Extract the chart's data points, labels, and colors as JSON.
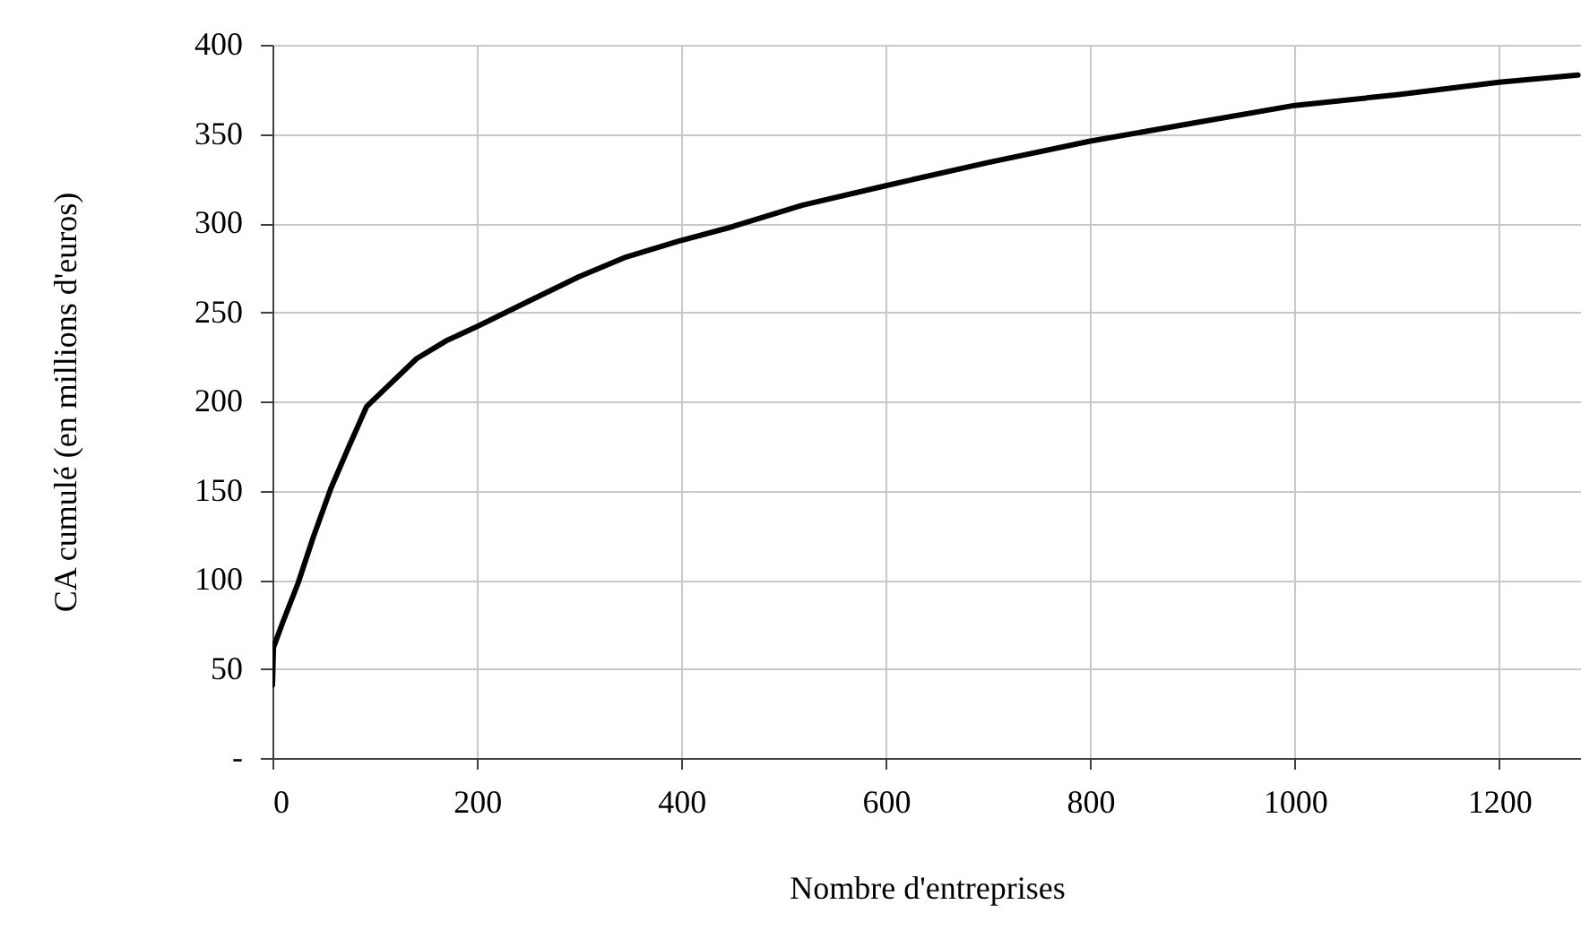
{
  "chart_data": {
    "type": "line",
    "xlabel": "Nombre d'entreprises",
    "ylabel": "CA cumulé  (en millions d'euros)",
    "x": [
      0,
      1,
      10,
      25,
      40,
      57,
      75,
      92,
      110,
      141,
      170,
      200,
      250,
      300,
      346,
      398,
      450,
      518,
      600,
      700,
      800,
      900,
      1000,
      1100,
      1200,
      1277
    ],
    "series": [
      {
        "color": "#000000",
        "values": [
          41,
          62,
          76,
          98,
          124,
          151,
          175,
          197,
          207,
          224,
          234,
          242,
          256,
          270,
          281,
          290,
          298,
          310,
          321,
          334,
          346,
          356,
          366,
          372,
          379,
          383
        ]
      }
    ],
    "xlim": [
      0,
      1280
    ],
    "xticks": [
      0,
      200,
      400,
      600,
      800,
      1000,
      1200
    ],
    "ylim": [
      0,
      400
    ],
    "yticks": [
      {
        "value": 0,
        "label": "-"
      },
      50,
      100,
      150,
      200,
      250,
      300,
      350,
      400
    ],
    "grid": true,
    "marker": "none",
    "line_style": "solid"
  }
}
